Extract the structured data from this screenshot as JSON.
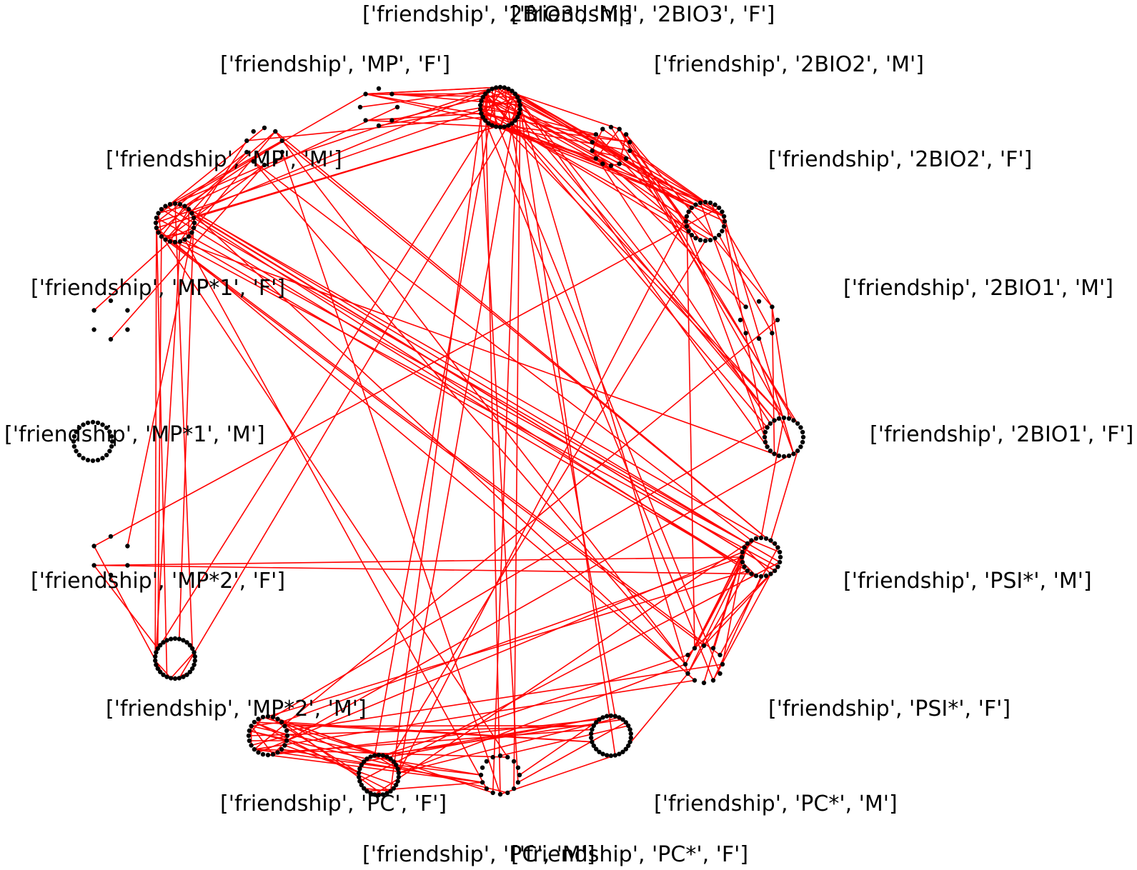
{
  "diagram": {
    "edge_color": "#ff0000",
    "node_color": "#000000",
    "groups": [
      {
        "id": "g0",
        "label": "['friendship', '2BIO3', 'M']",
        "nodes": 1
      },
      {
        "id": "g1",
        "label": "['friendship', '2BIO3', 'F']",
        "nodes": 30
      },
      {
        "id": "g2",
        "label": "['friendship', '2BIO2', 'M']",
        "nodes": 14
      },
      {
        "id": "g3",
        "label": "['friendship', '2BIO2', 'F']",
        "nodes": 24
      },
      {
        "id": "g4",
        "label": "['friendship', '2BIO1', 'M']",
        "nodes": 8
      },
      {
        "id": "g5",
        "label": "['friendship', '2BIO1', 'F']",
        "nodes": 24
      },
      {
        "id": "g6",
        "label": "['friendship', 'PSI*', 'M']",
        "nodes": 24
      },
      {
        "id": "g7",
        "label": "['friendship', 'PSI*', 'F']",
        "nodes": 12
      },
      {
        "id": "g8",
        "label": "['friendship', 'PC*', 'F']",
        "nodes": 1
      },
      {
        "id": "g9",
        "label": "['friendship', 'PC*', 'M']",
        "nodes": 30
      },
      {
        "id": "g10",
        "label": "['friendship', 'PC', 'M']",
        "nodes": 16
      },
      {
        "id": "g11",
        "label": "['friendship', 'PC', 'F']",
        "nodes": 30
      },
      {
        "id": "g12",
        "label": "['friendship', 'MP*2', 'M']",
        "nodes": 24
      },
      {
        "id": "g13",
        "label": "['friendship', 'MP*2', 'F']",
        "nodes": 30
      },
      {
        "id": "g14",
        "label": "['friendship', 'MP*2', 'F']",
        "nodes": 6
      },
      {
        "id": "g15",
        "label": "['friendship', 'MP*1', 'M']",
        "nodes": 24
      },
      {
        "id": "g16",
        "label": "['friendship', 'MP*1', 'F']",
        "nodes": 6
      },
      {
        "id": "g17",
        "label": "['friendship', 'MP', 'M']",
        "nodes": 24
      },
      {
        "id": "g18",
        "label": "['friendship', 'MP', 'M']",
        "nodes": 10
      },
      {
        "id": "g19",
        "label": "['friendship', 'MP', 'F']",
        "nodes": 8
      }
    ]
  }
}
